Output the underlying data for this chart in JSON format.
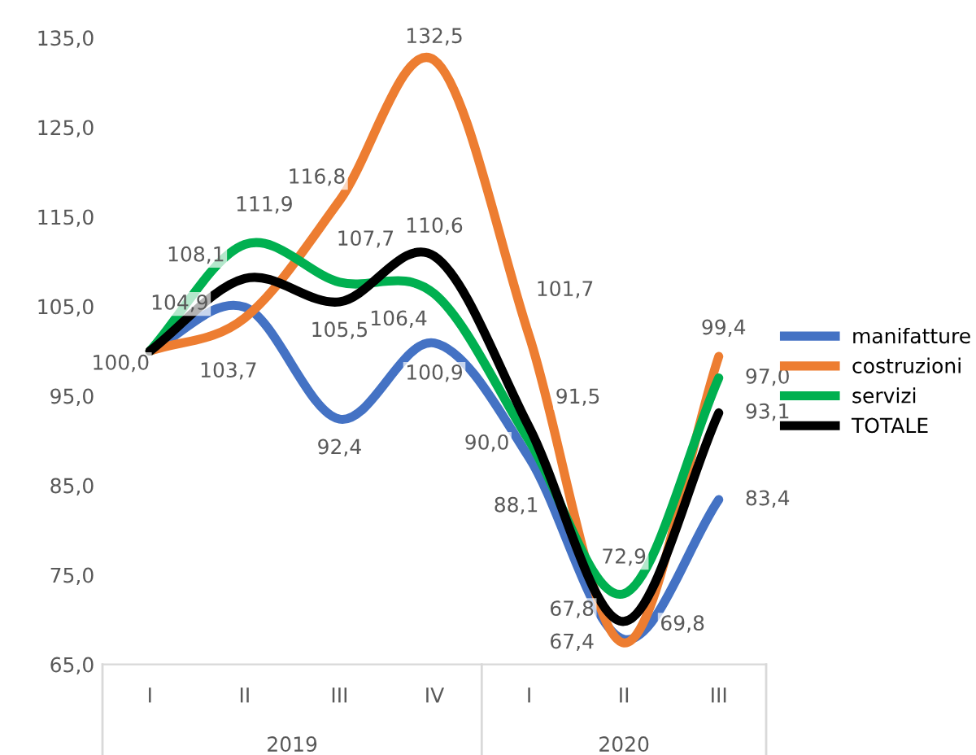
{
  "chart_data": {
    "type": "line",
    "categories": [
      "I",
      "II",
      "III",
      "IV",
      "I",
      "II",
      "III"
    ],
    "annotations": [
      "2019",
      "2020"
    ],
    "ylim": [
      65,
      135
    ],
    "yticks": [
      {
        "value": 65,
        "label": "65,0"
      },
      {
        "value": 75,
        "label": "75,0"
      },
      {
        "value": 85,
        "label": "85,0"
      },
      {
        "value": 95,
        "label": "95,0"
      },
      {
        "value": 105,
        "label": "105,0"
      },
      {
        "value": 115,
        "label": "115,0"
      },
      {
        "value": 125,
        "label": "125,0"
      },
      {
        "value": 135,
        "label": "135,0"
      }
    ],
    "grid": false,
    "legend": "right",
    "marker": "none",
    "line_style": "solid",
    "series": [
      {
        "name": "manifatture",
        "color": "#4472c4",
        "values": [
          100.0,
          104.9,
          92.4,
          100.9,
          88.1,
          67.8,
          83.4
        ],
        "value_labels": [
          null,
          "104,9",
          "92,4",
          "100,9",
          "88,1",
          "67,8",
          "83,4"
        ]
      },
      {
        "name": "costruzioni",
        "color": "#ed7d31",
        "values": [
          100.0,
          103.7,
          116.8,
          132.5,
          101.7,
          67.4,
          99.4
        ],
        "value_labels": [
          null,
          "103,7",
          "116,8",
          "132,5",
          "101,7",
          "67,4",
          "99,4"
        ]
      },
      {
        "name": "servizi",
        "color": "#00b050",
        "values": [
          100.0,
          111.9,
          107.7,
          106.4,
          90.0,
          72.9,
          97.0
        ],
        "value_labels": [
          null,
          "111,9",
          "107,7",
          "106,4",
          "90,0",
          "72,9",
          "97,0"
        ]
      },
      {
        "name": "TOTALE",
        "color": "#000000",
        "values": [
          100.0,
          108.1,
          105.5,
          110.6,
          91.5,
          69.8,
          93.1
        ],
        "value_labels": [
          "100,0",
          "108,1",
          "105,5",
          "110,6",
          "91,5",
          "69,8",
          "93,1"
        ]
      }
    ]
  }
}
